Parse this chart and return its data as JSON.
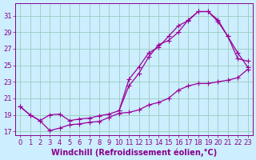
{
  "xlabel": "Windchill (Refroidissement éolien,°C)",
  "bg_color": "#cceeff",
  "grid_color": "#99ccbb",
  "line_color": "#990099",
  "xlim_min": -0.5,
  "xlim_max": 23.5,
  "ylim_min": 16.5,
  "ylim_max": 32.5,
  "yticks": [
    17,
    19,
    21,
    23,
    25,
    27,
    29,
    31
  ],
  "xticks": [
    0,
    1,
    2,
    3,
    4,
    5,
    6,
    7,
    8,
    9,
    10,
    11,
    12,
    13,
    14,
    15,
    16,
    17,
    18,
    19,
    20,
    21,
    22,
    23
  ],
  "series1_x": [
    0,
    1,
    2,
    3,
    4,
    5,
    6,
    7,
    8,
    9,
    10,
    11,
    12,
    13,
    14,
    15,
    16,
    17,
    18,
    19,
    20,
    21,
    22,
    23
  ],
  "series1_y": [
    20.0,
    19.0,
    18.3,
    17.1,
    17.4,
    17.8,
    17.9,
    18.1,
    18.2,
    18.7,
    19.2,
    19.3,
    19.6,
    20.2,
    20.5,
    21.0,
    22.0,
    22.5,
    22.8,
    22.8,
    23.0,
    23.2,
    23.5,
    24.5
  ],
  "series2_x": [
    0,
    1,
    2,
    3,
    4,
    5,
    6,
    7,
    8,
    9,
    10,
    11,
    12,
    13,
    14,
    15,
    16,
    17,
    18,
    19,
    20,
    21,
    22,
    23
  ],
  "series2_y": [
    20.0,
    19.0,
    18.3,
    19.0,
    19.1,
    18.3,
    18.5,
    18.6,
    18.9,
    19.1,
    19.5,
    23.3,
    24.8,
    26.5,
    27.2,
    28.5,
    29.8,
    30.4,
    31.5,
    31.5,
    30.3,
    28.5,
    26.5,
    24.8
  ],
  "series3_x": [
    10,
    11,
    12,
    13,
    14,
    15,
    16,
    17,
    18,
    19,
    20,
    21,
    22,
    23
  ],
  "series3_y": [
    19.5,
    22.5,
    24.0,
    26.0,
    27.5,
    28.0,
    29.0,
    30.5,
    31.5,
    31.5,
    30.5,
    28.5,
    25.8,
    25.5
  ],
  "marker": "+",
  "markersize": 4,
  "linewidth": 0.9,
  "xlabel_fontsize": 7,
  "tick_fontsize": 6,
  "font_color": "#880088"
}
